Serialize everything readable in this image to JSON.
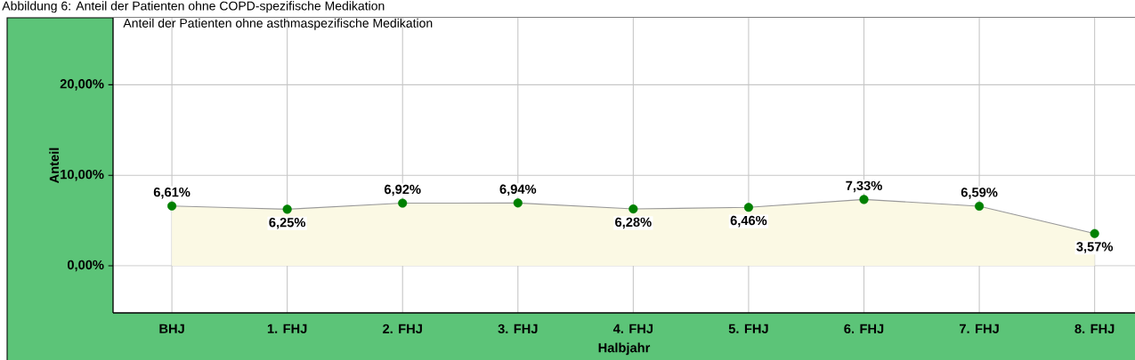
{
  "chart_data": {
    "type": "area",
    "title": "Anteil der Patienten ohne asthmaspezifische Medikation",
    "annotations": [
      "Abbildung 6: Anteil der Patienten ohne COPD-spezifische Medikation"
    ],
    "xlabel": "Halbjahr",
    "ylabel": "Anteil",
    "categories": [
      "BHJ",
      "1. FHJ",
      "2. FHJ",
      "3. FHJ",
      "4. FHJ",
      "5. FHJ",
      "6. FHJ",
      "7. FHJ",
      "8. FHJ"
    ],
    "values": [
      6.61,
      6.25,
      6.92,
      6.94,
      6.28,
      6.46,
      7.33,
      6.59,
      3.57
    ],
    "value_labels": [
      "6,61%",
      "6,25%",
      "6,92%",
      "6,94%",
      "6,28%",
      "6,46%",
      "7,33%",
      "6,59%",
      "3,57%"
    ],
    "color": "#fbf9e4",
    "marker": "circle",
    "ylim": [
      -5.2,
      27.4
    ],
    "yticks": [
      {
        "value": 0,
        "label": "0,00%"
      },
      {
        "value": 10,
        "label": "10,00%"
      },
      {
        "value": 20,
        "label": "20,00%"
      }
    ],
    "grid": true
  }
}
